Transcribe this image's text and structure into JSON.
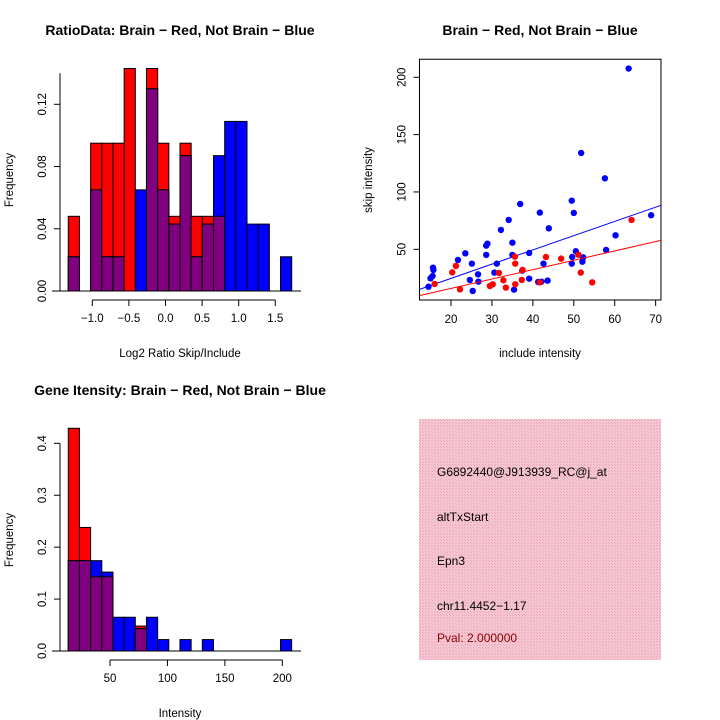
{
  "colors": {
    "brain": "#ff0000",
    "not_brain": "#0000ff",
    "overlap": "#800080",
    "info_bg": "#f4bcca",
    "pval": "#8b0000"
  },
  "chart_data": [
    {
      "type": "bar",
      "subtype": "overlaid-histogram",
      "title": "RatioData: Brain − Red, Not Brain − Blue",
      "xlabel": "Log2 Ratio Skip/Include",
      "ylabel": "Frequency",
      "bin_start": -1.328,
      "bin_width": 0.1526,
      "xticks": [
        "−1.0",
        "−0.5",
        "0.0",
        "0.5",
        "1.0",
        "1.5"
      ],
      "xtick_values": [
        -1.0,
        -0.5,
        0.0,
        0.5,
        1.0,
        1.5
      ],
      "yticks": [
        "0.00",
        "0.04",
        "0.08",
        "0.12"
      ],
      "ytick_values": [
        0,
        0.04,
        0.08,
        0.12
      ],
      "ylim": [
        0,
        0.143
      ],
      "series": [
        {
          "name": "Brain",
          "color": "red",
          "values": [
            0.048,
            0,
            0.095,
            0.095,
            0.095,
            0.143,
            0,
            0.143,
            0.095,
            0.048,
            0.095,
            0.048,
            0.048,
            0.048,
            0,
            0,
            0,
            0,
            0,
            0
          ]
        },
        {
          "name": "Not Brain",
          "color": "blue",
          "values": [
            0.022,
            0,
            0.065,
            0.022,
            0.022,
            0,
            0.065,
            0.13,
            0.065,
            0.043,
            0.087,
            0.022,
            0.043,
            0.087,
            0.109,
            0.109,
            0.043,
            0.043,
            0,
            0.022
          ]
        }
      ]
    },
    {
      "type": "scatter",
      "title": "Brain − Red, Not Brain − Blue",
      "xlabel": "include intensity",
      "ylabel": "skip intensity",
      "xlim": [
        12.3,
        71.3
      ],
      "ylim": [
        5.8,
        215.7
      ],
      "xticks": [
        "20",
        "30",
        "40",
        "50",
        "60",
        "70"
      ],
      "xtick_values": [
        20,
        30,
        40,
        50,
        60,
        70
      ],
      "yticks": [
        "50",
        "100",
        "150",
        "200"
      ],
      "ytick_values": [
        50,
        100,
        150,
        200
      ],
      "series": [
        {
          "name": "Not Brain",
          "color": "blue",
          "points": [
            [
              14.5,
              17.4
            ],
            [
              15.0,
              24.7
            ],
            [
              15.5,
              26.7
            ],
            [
              15.6,
              34.0
            ],
            [
              15.7,
              32.0
            ],
            [
              21.7,
              40.7
            ],
            [
              23.5,
              46.5
            ],
            [
              25.1,
              37.5
            ],
            [
              24.6,
              23.3
            ],
            [
              25.3,
              13.7
            ],
            [
              26.6,
              28.2
            ],
            [
              26.7,
              21.8
            ],
            [
              28.6,
              45.1
            ],
            [
              28.6,
              53.2
            ],
            [
              28.9,
              54.9
            ],
            [
              30.6,
              29.7
            ],
            [
              31.2,
              37.5
            ],
            [
              32.2,
              66.9
            ],
            [
              34.1,
              75.6
            ],
            [
              35.0,
              55.8
            ],
            [
              35.0,
              45.1
            ],
            [
              35.4,
              14.8
            ],
            [
              36.9,
              89.5
            ],
            [
              37.4,
              31.4
            ],
            [
              39.1,
              46.8
            ],
            [
              39.1,
              24.4
            ],
            [
              41.3,
              21.5
            ],
            [
              41.7,
              82.0
            ],
            [
              42.1,
              21.8
            ],
            [
              42.6,
              37.5
            ],
            [
              43.6,
              22.7
            ],
            [
              43.9,
              68.3
            ],
            [
              49.5,
              92.4
            ],
            [
              49.5,
              37.5
            ],
            [
              49.6,
              43.3
            ],
            [
              50.0,
              81.7
            ],
            [
              50.5,
              48.3
            ],
            [
              51.8,
              134.0
            ],
            [
              52.1,
              39.2
            ],
            [
              52.3,
              43.0
            ],
            [
              57.6,
              111.9
            ],
            [
              57.9,
              49.4
            ],
            [
              60.2,
              62.2
            ],
            [
              63.4,
              207.6
            ],
            [
              68.9,
              79.7
            ]
          ],
          "fit": {
            "slope": 1.242,
            "intercept": -0.2
          }
        },
        {
          "name": "Brain",
          "color": "red",
          "points": [
            [
              16.0,
              19.8
            ],
            [
              20.3,
              29.9
            ],
            [
              21.2,
              35.5
            ],
            [
              22.2,
              15.1
            ],
            [
              29.5,
              18.0
            ],
            [
              30.2,
              19.5
            ],
            [
              31.7,
              29.4
            ],
            [
              32.8,
              23.0
            ],
            [
              33.4,
              16.6
            ],
            [
              35.6,
              43.6
            ],
            [
              35.7,
              37.5
            ],
            [
              35.7,
              19.5
            ],
            [
              37.3,
              23.3
            ],
            [
              37.5,
              32.0
            ],
            [
              41.7,
              21.2
            ],
            [
              43.2,
              43.3
            ],
            [
              46.9,
              41.9
            ],
            [
              51.1,
              45.3
            ],
            [
              51.7,
              29.7
            ],
            [
              54.5,
              21.2
            ],
            [
              64.1,
              75.6
            ]
          ],
          "fit": {
            "slope": 0.817,
            "intercept": -0.45
          }
        }
      ]
    },
    {
      "type": "bar",
      "subtype": "overlaid-histogram",
      "title": "Gene Itensity: Brain − Red, Not Brain − Blue",
      "xlabel": "Intensity",
      "ylabel": "Frequency",
      "bin_start": 13.7,
      "bin_width": 9.72,
      "xticks": [
        "50",
        "100",
        "150",
        "200"
      ],
      "xtick_values": [
        50,
        100,
        150,
        200
      ],
      "yticks": [
        "0.0",
        "0.1",
        "0.2",
        "0.3",
        "0.4"
      ],
      "ytick_values": [
        0,
        0.1,
        0.2,
        0.3,
        0.4
      ],
      "ylim": [
        0,
        0.429
      ],
      "series": [
        {
          "name": "Brain",
          "color": "red",
          "values": [
            0.429,
            0.238,
            0.143,
            0.143,
            0,
            0,
            0.048,
            0,
            0,
            0,
            0,
            0,
            0,
            0,
            0,
            0,
            0,
            0,
            0,
            0
          ]
        },
        {
          "name": "Not Brain",
          "color": "blue",
          "values": [
            0.174,
            0.174,
            0.174,
            0.152,
            0.065,
            0.065,
            0.043,
            0.065,
            0.022,
            0,
            0.022,
            0,
            0.022,
            0,
            0,
            0,
            0,
            0,
            0,
            0.022
          ]
        }
      ]
    }
  ],
  "info_panel": {
    "probe_id": "G6892440@J913939_RC@j_at",
    "event_type": "altTxStart",
    "gene": "Epn3",
    "location": "chr11.4452−1.17",
    "pval": "Pval: 2.000000"
  }
}
